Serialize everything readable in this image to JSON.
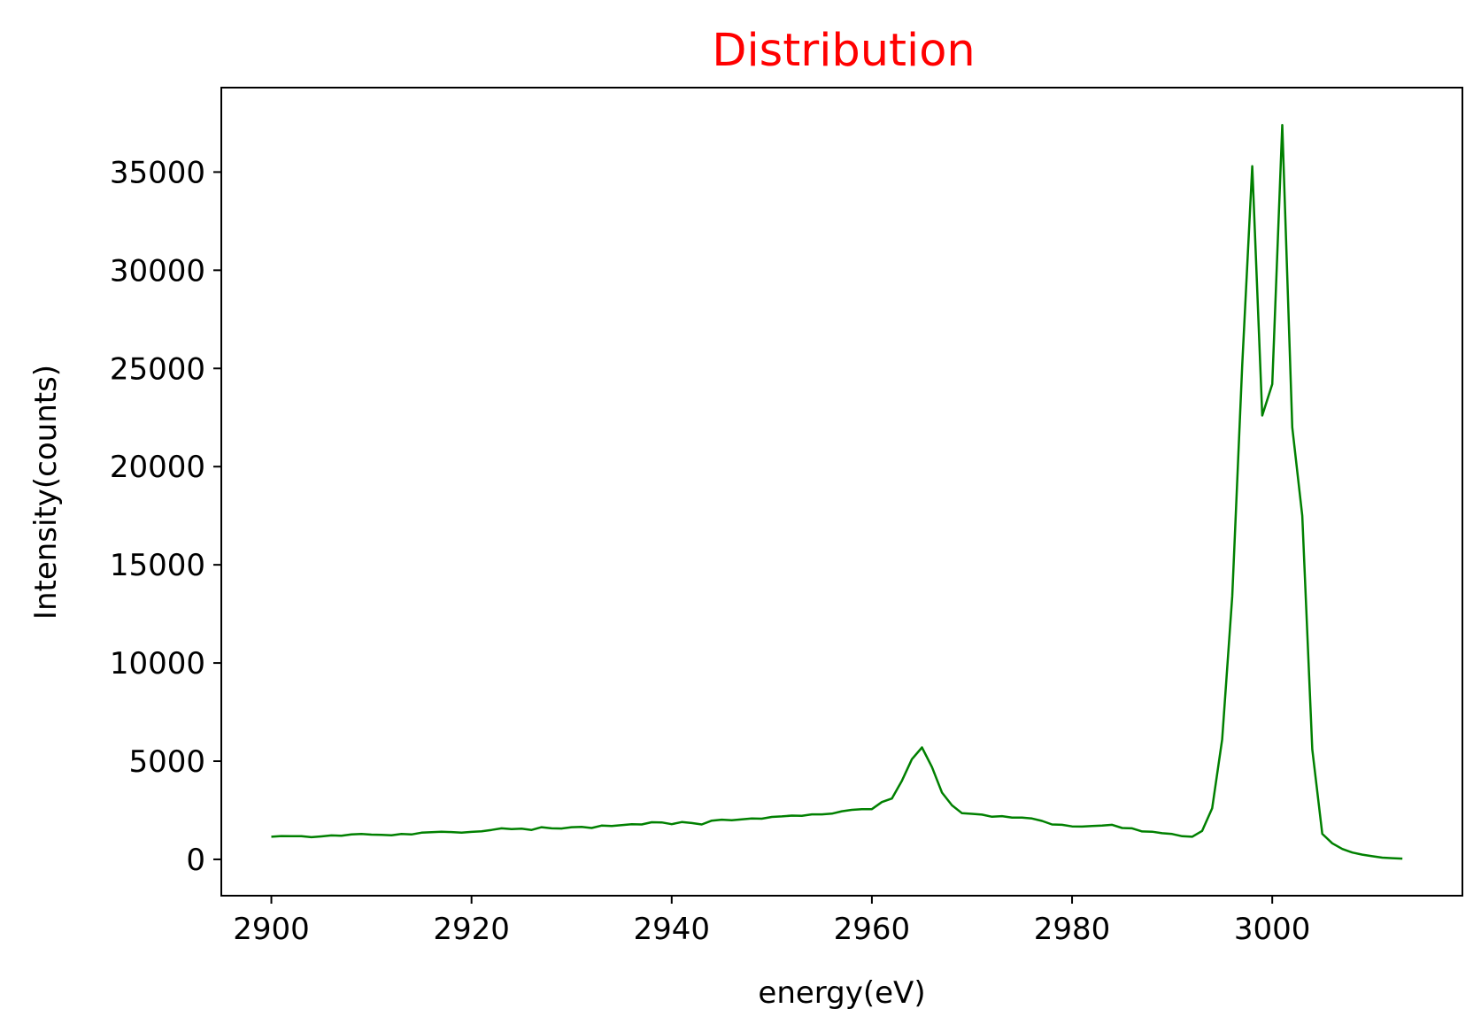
{
  "chart_data": {
    "type": "line",
    "title": "Distribution",
    "title_color": "#ff0000",
    "xlabel": "energy(eV)",
    "ylabel": "Intensity(counts)",
    "xlim": [
      2895,
      3019
    ],
    "ylim": [
      -1850,
      39300
    ],
    "xticks": [
      2900,
      2920,
      2940,
      2960,
      2980,
      3000
    ],
    "xtick_labels": [
      "2900",
      "2920",
      "2940",
      "2960",
      "2980",
      "3000"
    ],
    "yticks": [
      0,
      5000,
      10000,
      15000,
      20000,
      25000,
      30000,
      35000
    ],
    "ytick_labels": [
      "0",
      "5000",
      "10000",
      "15000",
      "20000",
      "25000",
      "30000",
      "35000"
    ],
    "grid": false,
    "series": [
      {
        "color": "#008000",
        "x": [
          2900,
          2901,
          2902,
          2903,
          2904,
          2905,
          2906,
          2907,
          2908,
          2909,
          2910,
          2911,
          2912,
          2913,
          2914,
          2915,
          2916,
          2917,
          2918,
          2919,
          2920,
          2921,
          2922,
          2923,
          2924,
          2925,
          2926,
          2927,
          2928,
          2929,
          2930,
          2931,
          2932,
          2933,
          2934,
          2935,
          2936,
          2937,
          2938,
          2939,
          2940,
          2941,
          2942,
          2943,
          2944,
          2945,
          2946,
          2947,
          2948,
          2949,
          2950,
          2951,
          2952,
          2953,
          2954,
          2955,
          2956,
          2957,
          2958,
          2959,
          2960,
          2961,
          2962,
          2963,
          2964,
          2965,
          2966,
          2967,
          2968,
          2969,
          2970,
          2971,
          2972,
          2973,
          2974,
          2975,
          2976,
          2977,
          2978,
          2979,
          2980,
          2981,
          2982,
          2983,
          2984,
          2985,
          2986,
          2987,
          2988,
          2989,
          2990,
          2991,
          2992,
          2993,
          2994,
          2995,
          2996,
          2997,
          2998,
          2999,
          3000,
          3001,
          3002,
          3003,
          3004,
          3005,
          3006,
          3007,
          3008,
          3009,
          3010,
          3011,
          3012,
          3013
        ],
        "y": [
          1150,
          1190,
          1180,
          1180,
          1130,
          1170,
          1220,
          1200,
          1270,
          1290,
          1260,
          1250,
          1230,
          1290,
          1270,
          1360,
          1380,
          1410,
          1390,
          1360,
          1400,
          1430,
          1500,
          1580,
          1540,
          1560,
          1500,
          1640,
          1580,
          1570,
          1640,
          1650,
          1600,
          1720,
          1700,
          1740,
          1790,
          1780,
          1890,
          1880,
          1790,
          1900,
          1850,
          1780,
          1970,
          2020,
          1990,
          2040,
          2080,
          2070,
          2160,
          2190,
          2230,
          2220,
          2290,
          2290,
          2330,
          2450,
          2520,
          2560,
          2560,
          2920,
          3100,
          4000,
          5100,
          5700,
          4700,
          3400,
          2750,
          2350,
          2320,
          2280,
          2170,
          2200,
          2130,
          2130,
          2080,
          1960,
          1780,
          1760,
          1680,
          1670,
          1700,
          1720,
          1760,
          1600,
          1580,
          1420,
          1410,
          1330,
          1290,
          1180,
          1150,
          1450,
          2600,
          6100,
          13400,
          25200,
          35300,
          22600,
          24200,
          37400,
          22000,
          17500,
          5600,
          1300,
          820,
          530,
          350,
          240,
          160,
          90,
          60,
          40
        ]
      }
    ]
  }
}
